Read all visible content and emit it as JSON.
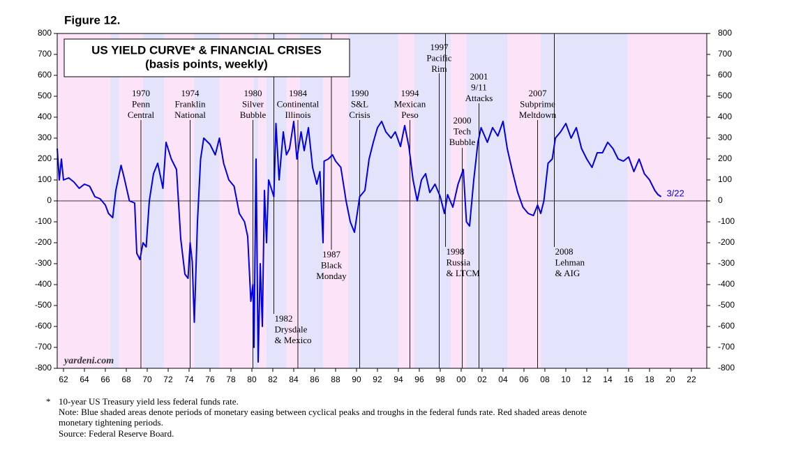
{
  "chart_data": {
    "type": "line",
    "figure_label": "Figure 12.",
    "title": "US YIELD CURVE* & FINANCIAL CRISES",
    "subtitle": "(basis points, weekly)",
    "watermark": "yardeni.com",
    "end_label": "3/22",
    "color": "#0000e6",
    "xlim": [
      1961.4,
      2023.47
    ],
    "ylim": [
      -800,
      800
    ],
    "y2lim": [
      -800,
      800
    ],
    "xticks": [
      {
        "value": 1962,
        "label": "62"
      },
      {
        "value": 1964,
        "label": "64"
      },
      {
        "value": 1966,
        "label": "66"
      },
      {
        "value": 1968,
        "label": "68"
      },
      {
        "value": 1970,
        "label": "70"
      },
      {
        "value": 1972,
        "label": "72"
      },
      {
        "value": 1974,
        "label": "74"
      },
      {
        "value": 1976,
        "label": "76"
      },
      {
        "value": 1978,
        "label": "78"
      },
      {
        "value": 1980,
        "label": "80"
      },
      {
        "value": 1982,
        "label": "82"
      },
      {
        "value": 1984,
        "label": "84"
      },
      {
        "value": 1986,
        "label": "86"
      },
      {
        "value": 1988,
        "label": "88"
      },
      {
        "value": 1990,
        "label": "90"
      },
      {
        "value": 1992,
        "label": "92"
      },
      {
        "value": 1994,
        "label": "94"
      },
      {
        "value": 1996,
        "label": "96"
      },
      {
        "value": 1998,
        "label": "98"
      },
      {
        "value": 2000,
        "label": "00"
      },
      {
        "value": 2002,
        "label": "02"
      },
      {
        "value": 2004,
        "label": "04"
      },
      {
        "value": 2006,
        "label": "06"
      },
      {
        "value": 2008,
        "label": "08"
      },
      {
        "value": 2010,
        "label": "10"
      },
      {
        "value": 2012,
        "label": "12"
      },
      {
        "value": 2014,
        "label": "14"
      },
      {
        "value": 2016,
        "label": "16"
      },
      {
        "value": 2018,
        "label": "18"
      },
      {
        "value": 2020,
        "label": "20"
      },
      {
        "value": 2022,
        "label": "22"
      }
    ],
    "yticks": [
      -800,
      -700,
      -600,
      -500,
      -400,
      -300,
      -200,
      -100,
      0,
      100,
      200,
      300,
      400,
      500,
      600,
      700,
      800
    ],
    "y2ticks": [
      -800,
      -700,
      -600,
      -500,
      -400,
      -300,
      -200,
      -100,
      0,
      100,
      200,
      300,
      400,
      500,
      600,
      700,
      800
    ],
    "shaded_periods": [
      {
        "start": 1961.4,
        "end": 1966.5,
        "color": "#fde3f8"
      },
      {
        "start": 1966.5,
        "end": 1967.3,
        "color": "#e3e3fb"
      },
      {
        "start": 1967.3,
        "end": 1969.6,
        "color": "#fde3f8"
      },
      {
        "start": 1969.6,
        "end": 1971.6,
        "color": "#e3e3fb"
      },
      {
        "start": 1971.6,
        "end": 1974.5,
        "color": "#fde3f8"
      },
      {
        "start": 1974.5,
        "end": 1976.9,
        "color": "#e3e3fb"
      },
      {
        "start": 1976.9,
        "end": 1980.2,
        "color": "#fde3f8"
      },
      {
        "start": 1980.2,
        "end": 1980.6,
        "color": "#e3e3fb"
      },
      {
        "start": 1980.6,
        "end": 1981.4,
        "color": "#fde3f8"
      },
      {
        "start": 1981.4,
        "end": 1983.3,
        "color": "#e3e3fb"
      },
      {
        "start": 1983.3,
        "end": 1984.6,
        "color": "#fde3f8"
      },
      {
        "start": 1984.6,
        "end": 1986.8,
        "color": "#e3e3fb"
      },
      {
        "start": 1986.8,
        "end": 1989.2,
        "color": "#fde3f8"
      },
      {
        "start": 1989.2,
        "end": 1994.0,
        "color": "#e3e3fb"
      },
      {
        "start": 1994.0,
        "end": 1995.5,
        "color": "#fde3f8"
      },
      {
        "start": 1995.5,
        "end": 1999.0,
        "color": "#e3e3fb"
      },
      {
        "start": 1999.0,
        "end": 2000.5,
        "color": "#fde3f8"
      },
      {
        "start": 2000.5,
        "end": 2004.4,
        "color": "#e3e3fb"
      },
      {
        "start": 2004.4,
        "end": 2007.6,
        "color": "#fde3f8"
      },
      {
        "start": 2007.6,
        "end": 2015.9,
        "color": "#e3e3fb"
      },
      {
        "start": 2015.9,
        "end": 2023.47,
        "color": "#fde3f8"
      }
    ],
    "events": [
      {
        "x": 1969.4,
        "label": [
          "1970",
          "Penn",
          "Central"
        ]
      },
      {
        "x": 1974.1,
        "label": [
          "1974",
          "Franklin",
          "National"
        ]
      },
      {
        "x": 1980.1,
        "label": [
          "1980",
          "Silver",
          "Bubble"
        ]
      },
      {
        "x": 1982.1,
        "label": [
          "1982",
          "Drysdale",
          "& Mexico"
        ]
      },
      {
        "x": 1984.4,
        "label": [
          "1984",
          "Continental",
          "Illinois"
        ]
      },
      {
        "x": 1987.6,
        "label": [
          "1987",
          "Black",
          "Monday"
        ]
      },
      {
        "x": 1990.3,
        "label": [
          "1990",
          "S&L",
          "Crisis"
        ]
      },
      {
        "x": 1995.1,
        "label": [
          "1994",
          "Mexican",
          "Peso"
        ]
      },
      {
        "x": 1997.9,
        "label": [
          "1997",
          "Pacific",
          "Rim"
        ]
      },
      {
        "x": 1998.5,
        "label": [
          "1998",
          "Russia",
          "& LTCM"
        ]
      },
      {
        "x": 2000.1,
        "label": [
          "2000",
          "Tech",
          "Bubble"
        ]
      },
      {
        "x": 2001.7,
        "label": [
          "2001",
          "9/11",
          "Attacks"
        ]
      },
      {
        "x": 2007.3,
        "label": [
          "2007",
          "Subprime",
          "Meltdown"
        ]
      },
      {
        "x": 2008.9,
        "label": [
          "2008",
          "Lehman",
          "& AIG"
        ]
      }
    ],
    "x": [
      1961.4,
      1961.6,
      1961.8,
      1962,
      1962.5,
      1963,
      1963.5,
      1964,
      1964.5,
      1965,
      1965.5,
      1966,
      1966.3,
      1966.7,
      1967,
      1967.5,
      1967.8,
      1968.3,
      1968.8,
      1969.0,
      1969.3,
      1969.6,
      1969.9,
      1970.2,
      1970.6,
      1971.0,
      1971.5,
      1971.8,
      1972.3,
      1972.8,
      1973.2,
      1973.6,
      1973.9,
      1974.1,
      1974.3,
      1974.5,
      1974.8,
      1975.1,
      1975.4,
      1976,
      1976.5,
      1976.9,
      1977.3,
      1977.8,
      1978.3,
      1978.8,
      1979.3,
      1979.6,
      1979.9,
      1980.1,
      1980.2,
      1980.4,
      1980.6,
      1980.8,
      1981,
      1981.2,
      1981.4,
      1981.6,
      1982.1,
      1982.3,
      1982.6,
      1983,
      1983.3,
      1983.6,
      1984,
      1984.3,
      1984.7,
      1985,
      1985.4,
      1985.8,
      1986.2,
      1986.5,
      1986.8,
      1986.9,
      1987.3,
      1987.7,
      1988,
      1988.5,
      1989,
      1989.4,
      1989.8,
      1990.3,
      1990.8,
      1991.2,
      1991.6,
      1992,
      1992.4,
      1992.8,
      1993.3,
      1993.7,
      1994.2,
      1994.6,
      1995,
      1995.4,
      1995.8,
      1996.2,
      1996.6,
      1997,
      1997.5,
      1998,
      1998.4,
      1998.7,
      1999.2,
      1999.7,
      2000.2,
      2000.5,
      2000.8,
      2001.2,
      2001.6,
      2001.9,
      2002.5,
      2003,
      2003.5,
      2004,
      2004.4,
      2004.9,
      2005.4,
      2005.9,
      2006.4,
      2006.9,
      2007.3,
      2007.6,
      2007.9,
      2008.3,
      2008.7,
      2009,
      2009.5,
      2010,
      2010.5,
      2011,
      2011.5,
      2012,
      2012.5,
      2013,
      2013.5,
      2014,
      2014.5,
      2015,
      2015.5,
      2016,
      2016.5,
      2017,
      2017.5,
      2018,
      2018.5,
      2018.8,
      2019.1
    ],
    "values": [
      250,
      100,
      200,
      100,
      110,
      90,
      60,
      80,
      70,
      20,
      10,
      -20,
      -60,
      -80,
      50,
      170,
      110,
      0,
      -10,
      -250,
      -280,
      -200,
      -220,
      0,
      130,
      180,
      60,
      280,
      200,
      150,
      -180,
      -350,
      -370,
      -200,
      -290,
      -580,
      -100,
      200,
      300,
      270,
      220,
      300,
      180,
      100,
      70,
      -60,
      -100,
      -170,
      -480,
      -400,
      -700,
      200,
      -770,
      -300,
      -600,
      50,
      -200,
      100,
      20,
      370,
      100,
      330,
      220,
      250,
      380,
      200,
      330,
      240,
      350,
      160,
      80,
      140,
      -200,
      190,
      200,
      220,
      190,
      160,
      0,
      -100,
      -150,
      20,
      50,
      200,
      280,
      350,
      380,
      330,
      300,
      330,
      260,
      360,
      260,
      100,
      0,
      100,
      130,
      40,
      80,
      20,
      -60,
      30,
      -30,
      80,
      150,
      -100,
      -120,
      100,
      280,
      350,
      280,
      350,
      310,
      380,
      250,
      140,
      40,
      -30,
      -60,
      -70,
      -20,
      -60,
      0,
      180,
      200,
      300,
      330,
      370,
      300,
      350,
      250,
      200,
      160,
      230,
      230,
      280,
      250,
      200,
      190,
      210,
      140,
      200,
      130,
      100,
      50,
      30,
      20
    ],
    "footnotes": [
      "*",
      "10-year US Treasury yield less federal funds rate.",
      "Note: Blue shaded areas denote periods of monetary easing between cyclical peaks and troughs in the federal funds rate. Red shaded areas denote",
      "monetary tightening periods.",
      "Source: Federal Reserve Board."
    ]
  }
}
